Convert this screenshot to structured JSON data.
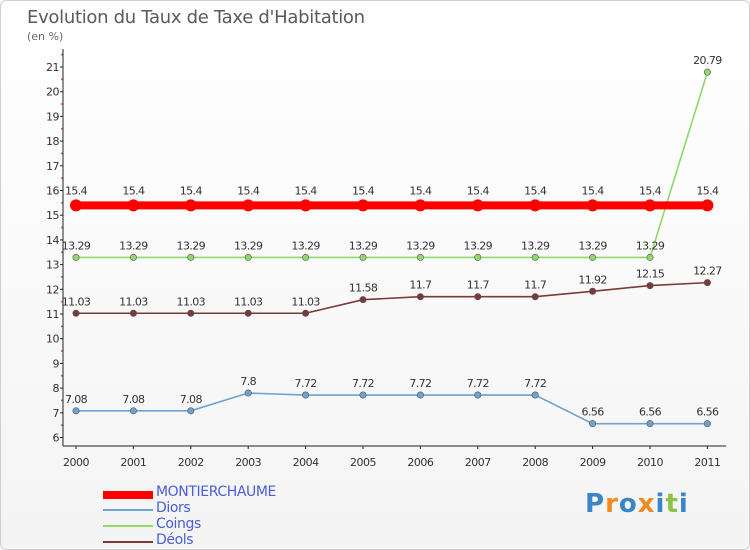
{
  "header": {
    "title": "Evolution du Taux de Taxe d'Habitation",
    "unit": "(en %)"
  },
  "logo": {
    "text": "Proxiti",
    "colors": [
      "#3a86c8",
      "#f08a24",
      "#3a86c8",
      "#f08a24",
      "#3a86c8",
      "#8bc34a",
      "#3a86c8"
    ]
  },
  "chart_data": {
    "type": "line",
    "title": "Evolution du Taux de Taxe d'Habitation",
    "ylabel": "(en %)",
    "xlabel": "",
    "categories": [
      "2000",
      "2001",
      "2002",
      "2003",
      "2004",
      "2005",
      "2006",
      "2007",
      "2008",
      "2009",
      "2010",
      "2011"
    ],
    "ylim": [
      6,
      21
    ],
    "yticks": [
      6,
      7,
      8,
      9,
      10,
      11,
      12,
      13,
      14,
      15,
      16,
      17,
      18,
      19,
      20,
      21
    ],
    "legend_position": "bottom-left",
    "series": [
      {
        "name": "MONTIERCHAUME",
        "color": "#ff0000",
        "emphasis": true,
        "values": [
          15.4,
          15.4,
          15.4,
          15.4,
          15.4,
          15.4,
          15.4,
          15.4,
          15.4,
          15.4,
          15.4,
          15.4
        ],
        "labels": [
          "15.4",
          "15.4",
          "15.4",
          "15.4",
          "15.4",
          "15.4",
          "15.4",
          "15.4",
          "15.4",
          "15.4",
          "15.4",
          "15.4"
        ]
      },
      {
        "name": "Diors",
        "color": "#6fa2cf",
        "values": [
          7.08,
          7.08,
          7.08,
          7.8,
          7.72,
          7.72,
          7.72,
          7.72,
          7.72,
          6.56,
          6.56,
          6.56
        ],
        "labels": [
          "7.08",
          "7.08",
          "7.08",
          "7.8",
          "7.72",
          "7.72",
          "7.72",
          "7.72",
          "7.72",
          "6.56",
          "6.56",
          "6.56"
        ]
      },
      {
        "name": "Coings",
        "color": "#8fd86a",
        "values": [
          13.29,
          13.29,
          13.29,
          13.29,
          13.29,
          13.29,
          13.29,
          13.29,
          13.29,
          13.29,
          13.29,
          20.79
        ],
        "labels": [
          "13.29",
          "13.29",
          "13.29",
          "13.29",
          "13.29",
          "13.29",
          "13.29",
          "13.29",
          "13.29",
          "13.29",
          "13.29",
          "20.79"
        ]
      },
      {
        "name": "Déols",
        "color": "#7a3a3a",
        "values": [
          11.03,
          11.03,
          11.03,
          11.03,
          11.03,
          11.58,
          11.7,
          11.7,
          11.7,
          11.92,
          12.15,
          12.27
        ],
        "labels": [
          "11.03",
          "11.03",
          "11.03",
          "11.03",
          "11.03",
          "11.58",
          "11.7",
          "11.7",
          "11.7",
          "11.92",
          "12.15",
          "12.27"
        ]
      }
    ]
  }
}
